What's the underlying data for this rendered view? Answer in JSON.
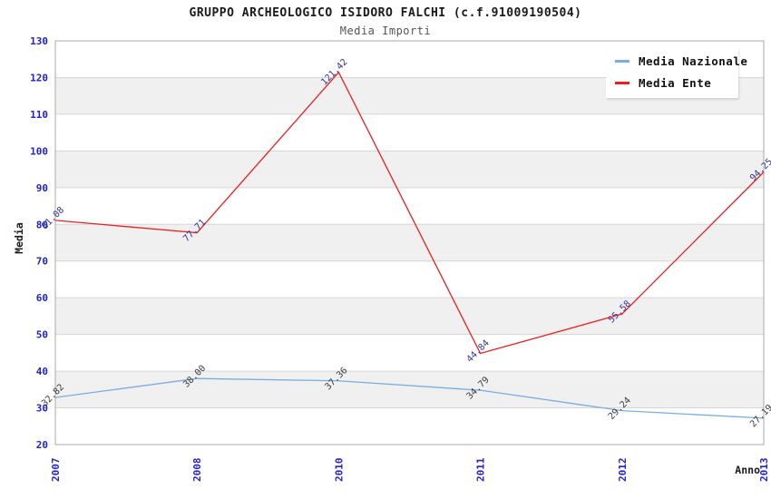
{
  "header": {
    "title": "GRUPPO ARCHEOLOGICO ISIDORO FALCHI (c.f.91009190504)",
    "subtitle": "Media Importi"
  },
  "chart_data": {
    "type": "line",
    "x": [
      "2007",
      "2008",
      "2010",
      "2011",
      "2012",
      "2013"
    ],
    "series": [
      {
        "name": "Media Nazionale",
        "values": [
          32.82,
          38.0,
          37.36,
          34.79,
          29.24,
          27.19
        ],
        "labels": [
          "32.82",
          "38.00",
          "37.36",
          "34.79",
          "29.24",
          "27.19"
        ],
        "color": "#79ade0",
        "label_color": "#3d3d3d"
      },
      {
        "name": "Media Ente",
        "values": [
          81.08,
          77.71,
          121.42,
          44.84,
          55.58,
          94.25
        ],
        "labels": [
          "81.08",
          "77.71",
          "121.42",
          "44.84",
          "55.58",
          "94.25"
        ],
        "color": "#e82020",
        "label_color": "#333399"
      }
    ],
    "xlabel": "Anno",
    "ylabel": "Media",
    "ylim": [
      20,
      130
    ],
    "yticks": [
      20,
      30,
      40,
      50,
      60,
      70,
      80,
      90,
      100,
      110,
      120,
      130
    ],
    "grid": true,
    "legend_position": "top-right",
    "colors": {
      "tick_label": "#2222cc",
      "band": "#f0f0f0",
      "grid": "#d6d6d6",
      "border": "#aaaaaa"
    }
  }
}
